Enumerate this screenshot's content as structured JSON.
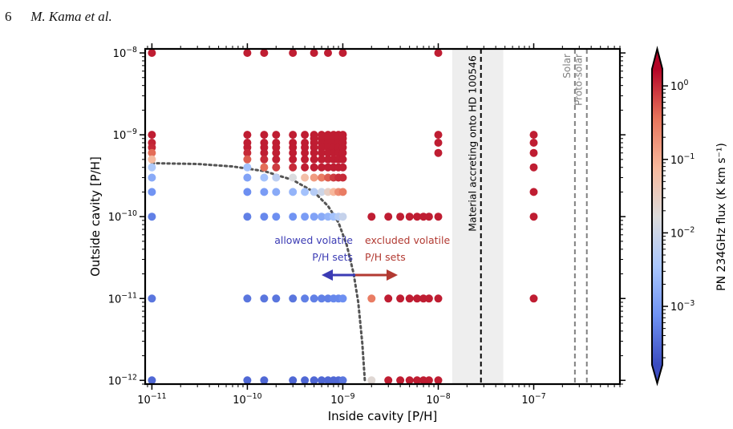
{
  "header": {
    "page_number": "6",
    "authors": "M. Kama et al."
  },
  "chart_data": {
    "type": "scatter",
    "xscale": "log",
    "yscale": "log",
    "xlim": [
      8.5e-12,
      8e-07
    ],
    "ylim": [
      9e-13,
      1.12e-08
    ],
    "xlabel": "Inside cavity [P/H]",
    "ylabel": "Outside cavity [P/H]",
    "x_ticks": [
      {
        "value": 1e-11,
        "base": "10",
        "exp": "−11"
      },
      {
        "value": 1e-10,
        "base": "10",
        "exp": "−10"
      },
      {
        "value": 1e-09,
        "base": "10",
        "exp": "−9"
      },
      {
        "value": 1e-08,
        "base": "10",
        "exp": "−8"
      },
      {
        "value": 1e-07,
        "base": "10",
        "exp": "−7"
      }
    ],
    "y_ticks": [
      {
        "value": 1e-12,
        "base": "10",
        "exp": "−12"
      },
      {
        "value": 1e-11,
        "base": "10",
        "exp": "−11"
      },
      {
        "value": 1e-10,
        "base": "10",
        "exp": "−10"
      },
      {
        "value": 1e-09,
        "base": "10",
        "exp": "−9"
      },
      {
        "value": 1e-08,
        "base": "10",
        "exp": "−8"
      }
    ],
    "colorbar": {
      "label": "PN 234GHz flux (K km s⁻¹)",
      "scale": "log",
      "range": [
        0.00016,
        1.7
      ],
      "ticks": [
        {
          "value": 1,
          "base": "10",
          "exp": "0"
        },
        {
          "value": 0.1,
          "base": "10",
          "exp": "−1"
        },
        {
          "value": 0.01,
          "base": "10",
          "exp": "−2"
        },
        {
          "value": 0.001,
          "base": "10",
          "exp": "−3"
        }
      ],
      "colormap": "coolwarm",
      "colors": [
        "#3b4cc0",
        "#6f92f3",
        "#aac7fd",
        "#dddcdc",
        "#f7b89c",
        "#e7745b",
        "#b40426"
      ]
    },
    "accretion_band": {
      "label": "Material accreting onto HD 100546",
      "x_center": 2.8e-08,
      "x_range": [
        1.4e-08,
        4.8e-08
      ],
      "band_color": "#eeeeee"
    },
    "reference_lines": [
      {
        "label": "Solar",
        "x": 2.7e-07,
        "color": "#808080"
      },
      {
        "label": "Proto-solar",
        "x": 3.6e-07,
        "color": "#808080"
      }
    ],
    "boundary_curve": [
      [
        1e-11,
        4.5e-10
      ],
      [
        3e-11,
        4.4e-10
      ],
      [
        7e-11,
        4.1e-10
      ],
      [
        1.5e-10,
        3.6e-10
      ],
      [
        3e-10,
        2.8e-10
      ],
      [
        5e-10,
        2e-10
      ],
      [
        7e-10,
        1.35e-10
      ],
      [
        9e-10,
        8.5e-11
      ],
      [
        1.1e-09,
        4.5e-11
      ],
      [
        1.3e-09,
        2e-11
      ],
      [
        1.45e-09,
        9e-12
      ],
      [
        1.6e-09,
        2.8e-12
      ],
      [
        1.7e-09,
        1e-12
      ]
    ],
    "annotations": {
      "allowed": {
        "line1": "allowed volatile",
        "line2": "P/H sets",
        "color": "#3b3bb4"
      },
      "excluded": {
        "line1": "excluded volatile",
        "line2": "P/H sets",
        "color": "#b23a32"
      }
    },
    "points": [
      {
        "x": 1e-11,
        "y": 1e-08,
        "v": 1.2
      },
      {
        "x": 1e-10,
        "y": 1e-08,
        "v": 1.2
      },
      {
        "x": 1.5e-10,
        "y": 1e-08,
        "v": 1.2
      },
      {
        "x": 3e-10,
        "y": 1e-08,
        "v": 1.2
      },
      {
        "x": 5e-10,
        "y": 1e-08,
        "v": 1.2
      },
      {
        "x": 7e-10,
        "y": 1e-08,
        "v": 1.2
      },
      {
        "x": 1e-09,
        "y": 1e-08,
        "v": 1.2
      },
      {
        "x": 1e-08,
        "y": 1e-08,
        "v": 1.2
      },
      {
        "x": 1e-11,
        "y": 1e-09,
        "v": 1.2
      },
      {
        "x": 1e-11,
        "y": 8e-10,
        "v": 1.1
      },
      {
        "x": 1e-11,
        "y": 7e-10,
        "v": 1.0
      },
      {
        "x": 1e-11,
        "y": 6e-10,
        "v": 0.4
      },
      {
        "x": 1e-11,
        "y": 5e-10,
        "v": 0.07
      },
      {
        "x": 1e-11,
        "y": 4e-10,
        "v": 0.004
      },
      {
        "x": 1e-11,
        "y": 3e-10,
        "v": 0.0015
      },
      {
        "x": 1e-11,
        "y": 2e-10,
        "v": 0.0008
      },
      {
        "x": 1e-11,
        "y": 1e-10,
        "v": 0.0005
      },
      {
        "x": 1e-11,
        "y": 1e-11,
        "v": 0.0004
      },
      {
        "x": 1e-11,
        "y": 1e-12,
        "v": 0.0003
      },
      {
        "x": 1e-10,
        "y": 1e-09,
        "v": 1.2
      },
      {
        "x": 1e-10,
        "y": 8e-10,
        "v": 1.2
      },
      {
        "x": 1e-10,
        "y": 7e-10,
        "v": 1.2
      },
      {
        "x": 1e-10,
        "y": 6e-10,
        "v": 1.0
      },
      {
        "x": 1e-10,
        "y": 5e-10,
        "v": 0.5
      },
      {
        "x": 1e-10,
        "y": 4e-10,
        "v": 0.003
      },
      {
        "x": 1e-10,
        "y": 3e-10,
        "v": 0.0012
      },
      {
        "x": 1e-10,
        "y": 2e-10,
        "v": 0.0007
      },
      {
        "x": 1e-10,
        "y": 1e-10,
        "v": 0.0005
      },
      {
        "x": 1e-10,
        "y": 1e-11,
        "v": 0.0004
      },
      {
        "x": 1e-10,
        "y": 1e-12,
        "v": 0.0003
      },
      {
        "x": 1.5e-10,
        "y": 1e-09,
        "v": 1.2
      },
      {
        "x": 1.5e-10,
        "y": 8e-10,
        "v": 1.2
      },
      {
        "x": 1.5e-10,
        "y": 7e-10,
        "v": 1.2
      },
      {
        "x": 1.5e-10,
        "y": 6e-10,
        "v": 1.2
      },
      {
        "x": 1.5e-10,
        "y": 5e-10,
        "v": 1.0
      },
      {
        "x": 1.5e-10,
        "y": 4e-10,
        "v": 0.4
      },
      {
        "x": 1.5e-10,
        "y": 3e-10,
        "v": 0.003
      },
      {
        "x": 1.5e-10,
        "y": 2e-10,
        "v": 0.001
      },
      {
        "x": 1.5e-10,
        "y": 1e-10,
        "v": 0.0006
      },
      {
        "x": 1.5e-10,
        "y": 1e-11,
        "v": 0.0004
      },
      {
        "x": 1.5e-10,
        "y": 1e-12,
        "v": 0.0003
      },
      {
        "x": 2e-10,
        "y": 1e-09,
        "v": 1.2
      },
      {
        "x": 2e-10,
        "y": 8e-10,
        "v": 1.2
      },
      {
        "x": 2e-10,
        "y": 7e-10,
        "v": 1.2
      },
      {
        "x": 2e-10,
        "y": 6e-10,
        "v": 1.2
      },
      {
        "x": 2e-10,
        "y": 5e-10,
        "v": 1.2
      },
      {
        "x": 2e-10,
        "y": 4e-10,
        "v": 0.8
      },
      {
        "x": 2e-10,
        "y": 3e-10,
        "v": 0.006
      },
      {
        "x": 2e-10,
        "y": 2e-10,
        "v": 0.0015
      },
      {
        "x": 2e-10,
        "y": 1e-10,
        "v": 0.0007
      },
      {
        "x": 2e-10,
        "y": 1e-11,
        "v": 0.0004
      },
      {
        "x": 3e-10,
        "y": 1e-09,
        "v": 1.2
      },
      {
        "x": 3e-10,
        "y": 8e-10,
        "v": 1.2
      },
      {
        "x": 3e-10,
        "y": 7e-10,
        "v": 1.2
      },
      {
        "x": 3e-10,
        "y": 6e-10,
        "v": 1.2
      },
      {
        "x": 3e-10,
        "y": 5e-10,
        "v": 1.2
      },
      {
        "x": 3e-10,
        "y": 4e-10,
        "v": 1.0
      },
      {
        "x": 3e-10,
        "y": 3e-10,
        "v": 0.015
      },
      {
        "x": 3e-10,
        "y": 2e-10,
        "v": 0.002
      },
      {
        "x": 3e-10,
        "y": 1e-10,
        "v": 0.0008
      },
      {
        "x": 3e-10,
        "y": 1e-11,
        "v": 0.0004
      },
      {
        "x": 3e-10,
        "y": 1e-12,
        "v": 0.0003
      },
      {
        "x": 4e-10,
        "y": 1e-09,
        "v": 1.2
      },
      {
        "x": 4e-10,
        "y": 8e-10,
        "v": 1.2
      },
      {
        "x": 4e-10,
        "y": 7e-10,
        "v": 1.2
      },
      {
        "x": 4e-10,
        "y": 6e-10,
        "v": 1.2
      },
      {
        "x": 4e-10,
        "y": 5e-10,
        "v": 1.2
      },
      {
        "x": 4e-10,
        "y": 4e-10,
        "v": 1.2
      },
      {
        "x": 4e-10,
        "y": 3e-10,
        "v": 0.06
      },
      {
        "x": 4e-10,
        "y": 2e-10,
        "v": 0.003
      },
      {
        "x": 4e-10,
        "y": 1e-10,
        "v": 0.001
      },
      {
        "x": 4e-10,
        "y": 1e-11,
        "v": 0.0005
      },
      {
        "x": 4e-10,
        "y": 1e-12,
        "v": 0.0003
      },
      {
        "x": 5e-10,
        "y": 1e-09,
        "v": 1.2
      },
      {
        "x": 5e-10,
        "y": 9e-10,
        "v": 1.2
      },
      {
        "x": 5e-10,
        "y": 8e-10,
        "v": 1.2
      },
      {
        "x": 5e-10,
        "y": 7e-10,
        "v": 1.2
      },
      {
        "x": 5e-10,
        "y": 6e-10,
        "v": 1.2
      },
      {
        "x": 5e-10,
        "y": 5e-10,
        "v": 1.2
      },
      {
        "x": 5e-10,
        "y": 4e-10,
        "v": 1.2
      },
      {
        "x": 5e-10,
        "y": 3e-10,
        "v": 0.15
      },
      {
        "x": 5e-10,
        "y": 2e-10,
        "v": 0.005
      },
      {
        "x": 5e-10,
        "y": 1e-10,
        "v": 0.0012
      },
      {
        "x": 5e-10,
        "y": 1e-11,
        "v": 0.0005
      },
      {
        "x": 5e-10,
        "y": 1e-12,
        "v": 0.0003
      },
      {
        "x": 6e-10,
        "y": 1e-09,
        "v": 1.2
      },
      {
        "x": 6e-10,
        "y": 9e-10,
        "v": 1.2
      },
      {
        "x": 6e-10,
        "y": 8e-10,
        "v": 1.2
      },
      {
        "x": 6e-10,
        "y": 7e-10,
        "v": 1.2
      },
      {
        "x": 6e-10,
        "y": 6e-10,
        "v": 1.2
      },
      {
        "x": 6e-10,
        "y": 5e-10,
        "v": 1.2
      },
      {
        "x": 6e-10,
        "y": 4e-10,
        "v": 1.2
      },
      {
        "x": 6e-10,
        "y": 3e-10,
        "v": 0.3
      },
      {
        "x": 6e-10,
        "y": 2e-10,
        "v": 0.01
      },
      {
        "x": 6e-10,
        "y": 1e-10,
        "v": 0.0015
      },
      {
        "x": 6e-10,
        "y": 1e-11,
        "v": 0.0005
      },
      {
        "x": 6e-10,
        "y": 1e-12,
        "v": 0.0003
      },
      {
        "x": 7e-10,
        "y": 1e-09,
        "v": 1.2
      },
      {
        "x": 7e-10,
        "y": 9e-10,
        "v": 1.2
      },
      {
        "x": 7e-10,
        "y": 8e-10,
        "v": 1.2
      },
      {
        "x": 7e-10,
        "y": 7e-10,
        "v": 1.2
      },
      {
        "x": 7e-10,
        "y": 6e-10,
        "v": 1.2
      },
      {
        "x": 7e-10,
        "y": 5e-10,
        "v": 1.2
      },
      {
        "x": 7e-10,
        "y": 4e-10,
        "v": 1.2
      },
      {
        "x": 7e-10,
        "y": 3e-10,
        "v": 0.5
      },
      {
        "x": 7e-10,
        "y": 2e-10,
        "v": 0.03
      },
      {
        "x": 7e-10,
        "y": 1e-10,
        "v": 0.002
      },
      {
        "x": 7e-10,
        "y": 1e-11,
        "v": 0.0005
      },
      {
        "x": 7e-10,
        "y": 1e-12,
        "v": 0.0003
      },
      {
        "x": 8e-10,
        "y": 1e-09,
        "v": 1.2
      },
      {
        "x": 8e-10,
        "y": 9e-10,
        "v": 1.2
      },
      {
        "x": 8e-10,
        "y": 8e-10,
        "v": 1.2
      },
      {
        "x": 8e-10,
        "y": 7e-10,
        "v": 1.2
      },
      {
        "x": 8e-10,
        "y": 6e-10,
        "v": 1.2
      },
      {
        "x": 8e-10,
        "y": 5e-10,
        "v": 1.2
      },
      {
        "x": 8e-10,
        "y": 4e-10,
        "v": 1.2
      },
      {
        "x": 8e-10,
        "y": 3e-10,
        "v": 0.8
      },
      {
        "x": 8e-10,
        "y": 2e-10,
        "v": 0.08
      },
      {
        "x": 8e-10,
        "y": 1e-10,
        "v": 0.003
      },
      {
        "x": 8e-10,
        "y": 1e-11,
        "v": 0.0006
      },
      {
        "x": 8e-10,
        "y": 1e-12,
        "v": 0.0003
      },
      {
        "x": 9e-10,
        "y": 1e-09,
        "v": 1.2
      },
      {
        "x": 9e-10,
        "y": 9e-10,
        "v": 1.2
      },
      {
        "x": 9e-10,
        "y": 8e-10,
        "v": 1.2
      },
      {
        "x": 9e-10,
        "y": 7e-10,
        "v": 1.2
      },
      {
        "x": 9e-10,
        "y": 6e-10,
        "v": 1.2
      },
      {
        "x": 9e-10,
        "y": 5e-10,
        "v": 1.2
      },
      {
        "x": 9e-10,
        "y": 4e-10,
        "v": 1.2
      },
      {
        "x": 9e-10,
        "y": 3e-10,
        "v": 1.0
      },
      {
        "x": 9e-10,
        "y": 2e-10,
        "v": 0.2
      },
      {
        "x": 9e-10,
        "y": 1e-10,
        "v": 0.005
      },
      {
        "x": 9e-10,
        "y": 1e-11,
        "v": 0.0006
      },
      {
        "x": 9e-10,
        "y": 1e-12,
        "v": 0.0003
      },
      {
        "x": 1e-09,
        "y": 1e-09,
        "v": 1.2
      },
      {
        "x": 1e-09,
        "y": 9e-10,
        "v": 1.2
      },
      {
        "x": 1e-09,
        "y": 8e-10,
        "v": 1.2
      },
      {
        "x": 1e-09,
        "y": 7e-10,
        "v": 1.2
      },
      {
        "x": 1e-09,
        "y": 6e-10,
        "v": 1.2
      },
      {
        "x": 1e-09,
        "y": 5e-10,
        "v": 1.2
      },
      {
        "x": 1e-09,
        "y": 4e-10,
        "v": 1.2
      },
      {
        "x": 1e-09,
        "y": 3e-10,
        "v": 1.0
      },
      {
        "x": 1e-09,
        "y": 2e-10,
        "v": 0.3
      },
      {
        "x": 1e-09,
        "y": 1e-10,
        "v": 0.008
      },
      {
        "x": 1e-09,
        "y": 1e-11,
        "v": 0.0007
      },
      {
        "x": 1e-09,
        "y": 1e-12,
        "v": 0.0004
      },
      {
        "x": 2e-09,
        "y": 1e-10,
        "v": 1.2
      },
      {
        "x": 2e-09,
        "y": 1e-11,
        "v": 0.3
      },
      {
        "x": 2e-09,
        "y": 1e-12,
        "v": 0.02
      },
      {
        "x": 3e-09,
        "y": 1e-10,
        "v": 1.2
      },
      {
        "x": 3e-09,
        "y": 1e-11,
        "v": 1.2
      },
      {
        "x": 3e-09,
        "y": 1e-12,
        "v": 1.2
      },
      {
        "x": 4e-09,
        "y": 1e-10,
        "v": 1.2
      },
      {
        "x": 4e-09,
        "y": 1e-11,
        "v": 1.2
      },
      {
        "x": 4e-09,
        "y": 1e-12,
        "v": 1.2
      },
      {
        "x": 5e-09,
        "y": 1e-10,
        "v": 1.2
      },
      {
        "x": 5e-09,
        "y": 1e-11,
        "v": 1.2
      },
      {
        "x": 5e-09,
        "y": 1e-12,
        "v": 1.2
      },
      {
        "x": 6e-09,
        "y": 1e-10,
        "v": 1.2
      },
      {
        "x": 6e-09,
        "y": 1e-11,
        "v": 1.2
      },
      {
        "x": 6e-09,
        "y": 1e-12,
        "v": 1.2
      },
      {
        "x": 7e-09,
        "y": 1e-10,
        "v": 1.2
      },
      {
        "x": 7e-09,
        "y": 1e-11,
        "v": 1.2
      },
      {
        "x": 7e-09,
        "y": 1e-12,
        "v": 1.2
      },
      {
        "x": 8e-09,
        "y": 1e-10,
        "v": 1.2
      },
      {
        "x": 8e-09,
        "y": 1e-11,
        "v": 1.2
      },
      {
        "x": 8e-09,
        "y": 1e-12,
        "v": 1.2
      },
      {
        "x": 1e-08,
        "y": 1e-09,
        "v": 1.2
      },
      {
        "x": 1e-08,
        "y": 8e-10,
        "v": 1.2
      },
      {
        "x": 1e-08,
        "y": 6e-10,
        "v": 1.2
      },
      {
        "x": 1e-08,
        "y": 1e-10,
        "v": 1.2
      },
      {
        "x": 1e-08,
        "y": 1e-11,
        "v": 1.2
      },
      {
        "x": 1e-08,
        "y": 1e-12,
        "v": 1.2
      },
      {
        "x": 1e-07,
        "y": 1e-09,
        "v": 1.2
      },
      {
        "x": 1e-07,
        "y": 8e-10,
        "v": 1.2
      },
      {
        "x": 1e-07,
        "y": 6e-10,
        "v": 1.2
      },
      {
        "x": 1e-07,
        "y": 4e-10,
        "v": 1.2
      },
      {
        "x": 1e-07,
        "y": 2e-10,
        "v": 1.2
      },
      {
        "x": 1e-07,
        "y": 1e-10,
        "v": 1.2
      },
      {
        "x": 1e-07,
        "y": 1e-11,
        "v": 1.2
      }
    ]
  }
}
